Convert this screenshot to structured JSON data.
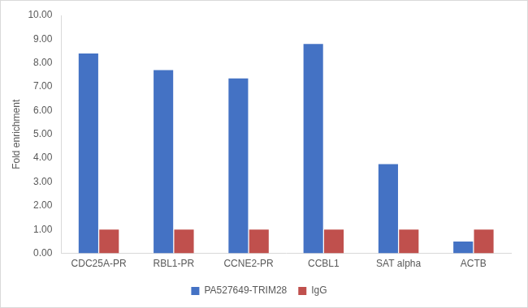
{
  "chart_data": {
    "type": "bar",
    "y_label": "Fold enrichment",
    "categories": [
      "CDC25A-PR",
      "RBL1-PR",
      "CCNE2-PR",
      "CCBL1",
      "SAT alpha",
      "ACTB"
    ],
    "series": [
      {
        "name": "PA527649-TRIM28",
        "color": "#4472c4",
        "values": [
          8.4,
          7.7,
          7.35,
          8.8,
          3.75,
          0.5
        ]
      },
      {
        "name": "IgG",
        "color": "#c0504d",
        "values": [
          1.0,
          1.0,
          1.0,
          1.0,
          1.0,
          1.0
        ]
      }
    ],
    "ylim": [
      0,
      10
    ],
    "yticks": [
      {
        "value": 0,
        "label": "0.00"
      },
      {
        "value": 1,
        "label": "1.00"
      },
      {
        "value": 2,
        "label": "2.00"
      },
      {
        "value": 3,
        "label": "3.00"
      },
      {
        "value": 4,
        "label": "4.00"
      },
      {
        "value": 5,
        "label": "5.00"
      },
      {
        "value": 6,
        "label": "6.00"
      },
      {
        "value": 7,
        "label": "7.00"
      },
      {
        "value": 8,
        "label": "8.00"
      },
      {
        "value": 9,
        "label": "9.00"
      },
      {
        "value": 10,
        "label": "10.00"
      }
    ],
    "grid": false,
    "legend": "bottom"
  }
}
